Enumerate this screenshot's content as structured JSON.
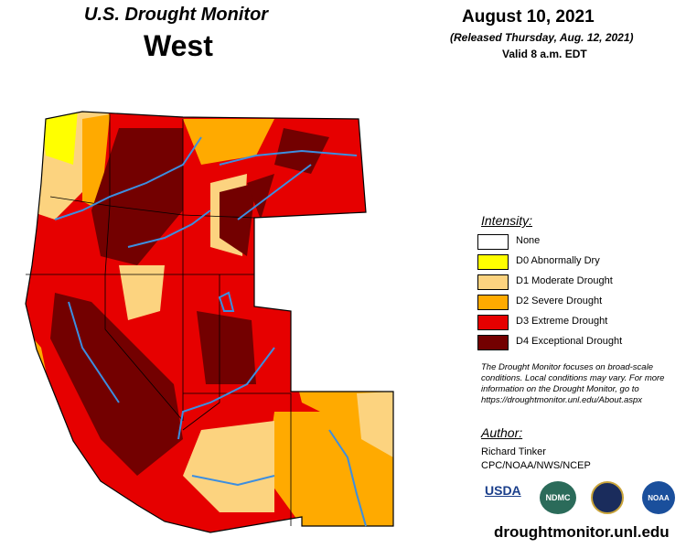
{
  "header": {
    "title": "U.S. Drought Monitor",
    "region": "West",
    "date": "August 10, 2021",
    "released": "(Released Thursday, Aug. 12, 2021)",
    "valid": "Valid 8 a.m. EDT"
  },
  "legend": {
    "title": "Intensity:",
    "items": [
      {
        "label": "None",
        "color": "#ffffff"
      },
      {
        "label": "D0 Abnormally Dry",
        "color": "#ffff00"
      },
      {
        "label": "D1 Moderate Drought",
        "color": "#fcd37f"
      },
      {
        "label": "D2 Severe Drought",
        "color": "#ffaa00"
      },
      {
        "label": "D3 Extreme Drought",
        "color": "#e60000"
      },
      {
        "label": "D4 Exceptional Drought",
        "color": "#730000"
      }
    ]
  },
  "note": [
    "The Drought Monitor focuses on broad-scale",
    "conditions. Local conditions may vary. For more",
    "information on the Drought Monitor, go to",
    "https://droughtmonitor.unl.edu/About.aspx"
  ],
  "author": {
    "title": "Author:",
    "name": "Richard Tinker",
    "org": "CPC/NOAA/NWS/NCEP"
  },
  "logos": [
    "USDA",
    "NDMC",
    "NOAA"
  ],
  "url": "droughtmonitor.unl.edu"
}
